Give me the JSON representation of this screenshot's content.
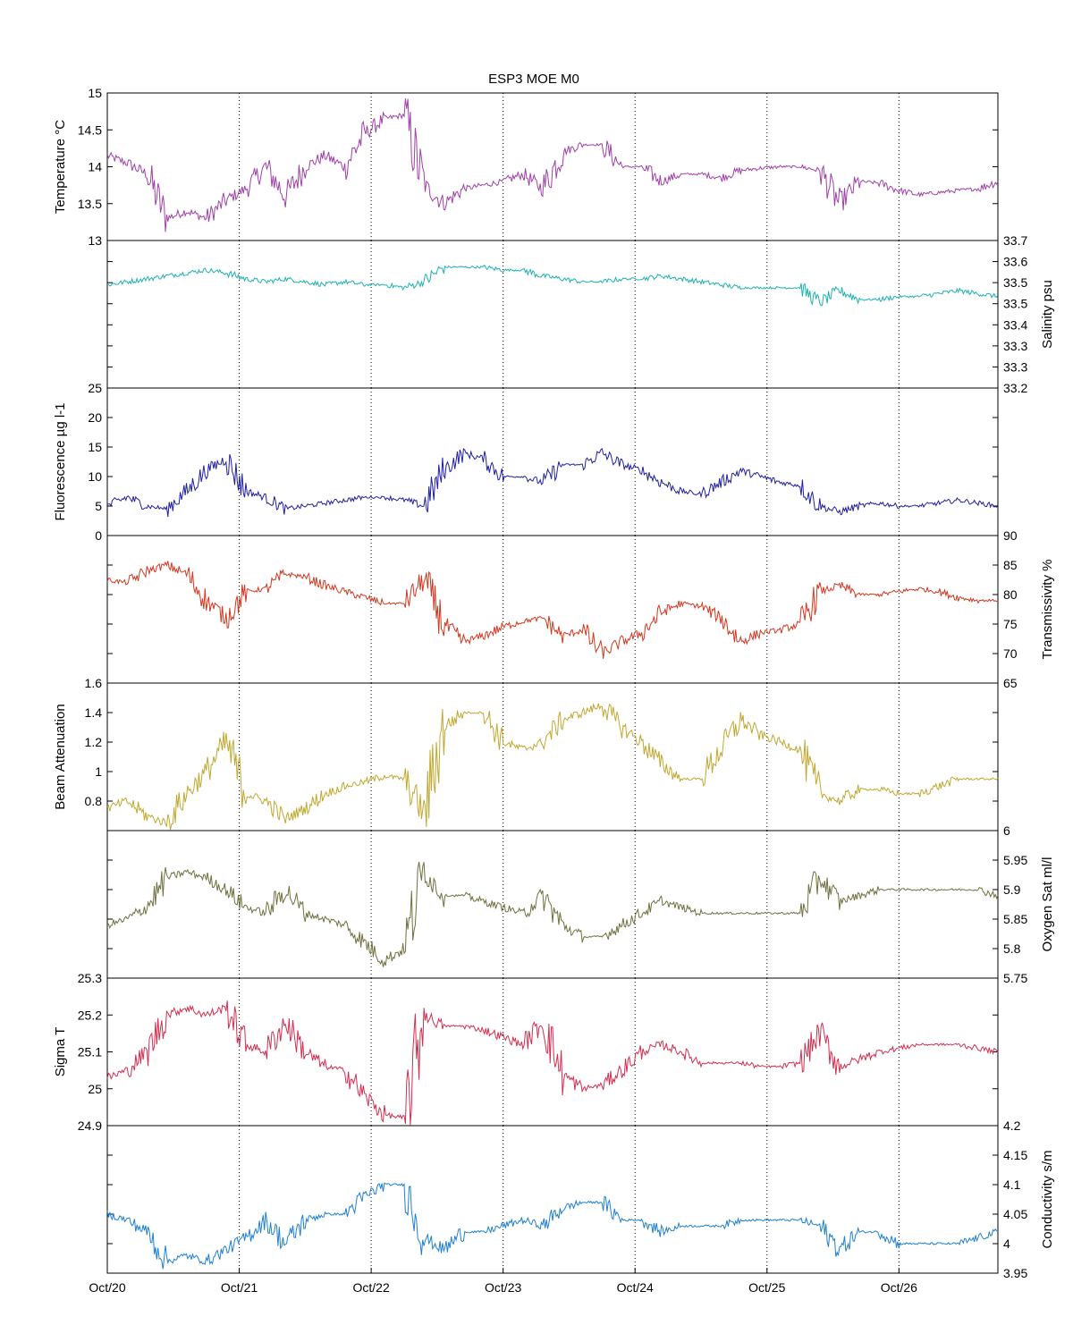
{
  "title": "ESP3 MOE   M0",
  "x_axis": {
    "start": "Oct/20",
    "end": "Oct/26 18:00",
    "tick_labels": [
      "Oct/20",
      "Oct/21",
      "Oct/22",
      "Oct/23",
      "Oct/24",
      "Oct/25",
      "Oct/26"
    ],
    "grid": "dotted vertical at each day"
  },
  "chart_data": [
    {
      "type": "line",
      "ylabel": "Temperature °C",
      "yaxis_side": "left",
      "ylim": [
        13,
        15
      ],
      "ytick_labels": [
        "13",
        "13.5",
        "14",
        "14.5",
        "15"
      ],
      "color": "#a040a8",
      "series": [
        {
          "x_days": [
            0,
            0.15,
            0.3,
            0.45,
            0.6,
            0.75,
            0.9,
            1.05,
            1.2,
            1.35,
            1.5,
            1.65,
            1.8,
            1.95,
            2.1,
            2.25,
            2.4,
            2.55,
            2.7,
            2.85,
            3.0,
            3.15,
            3.3,
            3.45,
            3.6,
            3.75,
            3.9,
            4.05,
            4.2,
            4.35,
            4.5,
            4.65,
            4.8,
            4.95,
            5.1,
            5.25,
            5.4,
            5.55,
            5.7,
            5.85,
            6.0,
            6.15,
            6.3,
            6.45,
            6.6,
            6.75
          ],
          "values": [
            14.15,
            14.05,
            13.9,
            13.3,
            13.4,
            13.3,
            13.55,
            13.7,
            14.0,
            13.6,
            14.0,
            14.15,
            14.0,
            14.45,
            14.65,
            14.7,
            13.75,
            13.5,
            13.7,
            13.75,
            13.8,
            13.9,
            13.7,
            14.2,
            14.3,
            14.3,
            14.0,
            14.0,
            13.8,
            13.9,
            13.9,
            13.85,
            13.95,
            13.98,
            14.0,
            14.0,
            13.95,
            13.5,
            13.8,
            13.78,
            13.68,
            13.62,
            13.65,
            13.68,
            13.7,
            13.8
          ]
        }
      ]
    },
    {
      "type": "line",
      "ylabel": "Salinity psu",
      "yaxis_side": "right",
      "ylim": [
        33.2,
        33.7
      ],
      "ytick_labels": [
        "33.2",
        "33.3",
        "33.3",
        "33.4",
        "33.5",
        "33.5",
        "33.6",
        "33.7"
      ],
      "color": "#20b0b0",
      "series": [
        {
          "x_days": [
            0,
            0.15,
            0.3,
            0.45,
            0.6,
            0.75,
            0.9,
            1.05,
            1.2,
            1.35,
            1.5,
            1.65,
            1.8,
            1.95,
            2.1,
            2.25,
            2.4,
            2.55,
            2.7,
            2.85,
            3.0,
            3.15,
            3.3,
            3.45,
            3.6,
            3.75,
            3.9,
            4.05,
            4.2,
            4.35,
            4.5,
            4.65,
            4.8,
            4.95,
            5.1,
            5.25,
            5.4,
            5.55,
            5.7,
            5.85,
            6.0,
            6.15,
            6.3,
            6.45,
            6.6,
            6.75
          ],
          "values": [
            33.55,
            33.56,
            33.57,
            33.58,
            33.59,
            33.6,
            33.59,
            33.57,
            33.56,
            33.57,
            33.56,
            33.55,
            33.56,
            33.55,
            33.55,
            33.54,
            33.56,
            33.61,
            33.61,
            33.61,
            33.6,
            33.6,
            33.58,
            33.57,
            33.56,
            33.56,
            33.57,
            33.57,
            33.58,
            33.57,
            33.56,
            33.55,
            33.54,
            33.54,
            33.54,
            33.54,
            33.49,
            33.53,
            33.5,
            33.5,
            33.51,
            33.51,
            33.52,
            33.53,
            33.52,
            33.51
          ]
        }
      ]
    },
    {
      "type": "line",
      "ylabel": "Fluorescence µg l-1",
      "yaxis_side": "left",
      "ylim": [
        0,
        25
      ],
      "ytick_labels": [
        "0",
        "5",
        "10",
        "15",
        "20",
        "25"
      ],
      "color": "#2020a0",
      "series": [
        {
          "x_days": [
            0,
            0.15,
            0.3,
            0.45,
            0.6,
            0.75,
            0.9,
            1.05,
            1.2,
            1.35,
            1.5,
            1.65,
            1.8,
            1.95,
            2.1,
            2.25,
            2.4,
            2.55,
            2.7,
            2.85,
            3.0,
            3.15,
            3.3,
            3.45,
            3.6,
            3.75,
            3.9,
            4.05,
            4.2,
            4.35,
            4.5,
            4.65,
            4.8,
            4.95,
            5.1,
            5.25,
            5.4,
            5.55,
            5.7,
            5.85,
            6.0,
            6.15,
            6.3,
            6.45,
            6.6,
            6.75
          ],
          "values": [
            5.0,
            6.5,
            5.0,
            4.5,
            7.5,
            11.0,
            13.0,
            7.5,
            6.5,
            4.5,
            5.0,
            5.5,
            6.0,
            6.5,
            6.5,
            6.0,
            5.0,
            11.0,
            14.0,
            13.0,
            10.0,
            10.0,
            9.0,
            12.0,
            12.0,
            14.0,
            12.0,
            11.0,
            9.0,
            7.5,
            7.0,
            9.0,
            11.0,
            10.0,
            9.0,
            8.5,
            5.0,
            4.0,
            5.0,
            5.5,
            5.0,
            5.0,
            5.5,
            6.0,
            5.5,
            5.0
          ]
        }
      ]
    },
    {
      "type": "line",
      "ylabel": "Transmissivity %",
      "yaxis_side": "right",
      "ylim": [
        65,
        90
      ],
      "ytick_labels": [
        "65",
        "70",
        "75",
        "80",
        "85",
        "90"
      ],
      "color": "#d03820",
      "series": [
        {
          "x_days": [
            0,
            0.15,
            0.3,
            0.45,
            0.6,
            0.75,
            0.9,
            1.05,
            1.2,
            1.35,
            1.5,
            1.65,
            1.8,
            1.95,
            2.1,
            2.25,
            2.4,
            2.55,
            2.7,
            2.85,
            3.0,
            3.15,
            3.3,
            3.45,
            3.6,
            3.75,
            3.9,
            4.05,
            4.2,
            4.35,
            4.5,
            4.65,
            4.8,
            4.95,
            5.1,
            5.25,
            5.4,
            5.55,
            5.7,
            5.85,
            6.0,
            6.15,
            6.3,
            6.45,
            6.6,
            6.75
          ],
          "values": [
            82.5,
            82.0,
            84.0,
            85.0,
            83.5,
            79.0,
            76.0,
            80.5,
            81.0,
            83.5,
            83.0,
            81.5,
            80.5,
            79.5,
            78.5,
            78.5,
            82.5,
            75.0,
            72.0,
            73.0,
            74.5,
            75.5,
            76.0,
            73.0,
            74.0,
            70.0,
            72.0,
            73.5,
            77.0,
            78.5,
            78.0,
            76.0,
            72.0,
            73.5,
            74.0,
            75.0,
            80.5,
            81.5,
            80.0,
            80.0,
            80.5,
            81.0,
            80.5,
            79.5,
            79.0,
            79.0
          ]
        }
      ]
    },
    {
      "type": "line",
      "ylabel": "Beam Attenuation",
      "yaxis_side": "left",
      "ylim": [
        0.6,
        1.6
      ],
      "ytick_labels": [
        "0.8",
        "1",
        "1.2",
        "1.4",
        "1.6"
      ],
      "color": "#c0a830",
      "series": [
        {
          "x_days": [
            0,
            0.15,
            0.3,
            0.45,
            0.6,
            0.75,
            0.9,
            1.05,
            1.2,
            1.35,
            1.5,
            1.65,
            1.8,
            1.95,
            2.1,
            2.25,
            2.4,
            2.55,
            2.7,
            2.85,
            3.0,
            3.15,
            3.3,
            3.45,
            3.6,
            3.75,
            3.9,
            4.05,
            4.2,
            4.35,
            4.5,
            4.65,
            4.8,
            4.95,
            5.1,
            5.25,
            5.4,
            5.55,
            5.7,
            5.85,
            6.0,
            6.15,
            6.3,
            6.45,
            6.6,
            6.75
          ],
          "values": [
            0.75,
            0.8,
            0.7,
            0.65,
            0.85,
            1.0,
            1.2,
            0.85,
            0.8,
            0.68,
            0.75,
            0.85,
            0.9,
            0.93,
            0.97,
            0.95,
            0.72,
            1.3,
            1.4,
            1.4,
            1.2,
            1.15,
            1.2,
            1.35,
            1.4,
            1.45,
            1.3,
            1.2,
            1.05,
            0.95,
            0.95,
            1.15,
            1.35,
            1.25,
            1.2,
            1.15,
            0.85,
            0.8,
            0.88,
            0.88,
            0.85,
            0.85,
            0.9,
            0.95,
            0.95,
            0.95
          ]
        }
      ]
    },
    {
      "type": "line",
      "ylabel": "Oxygen Sat ml/l",
      "yaxis_side": "right",
      "ylim": [
        5.75,
        6.0
      ],
      "ytick_labels": [
        "5.75",
        "5.8",
        "5.85",
        "5.9",
        "5.95",
        "6"
      ],
      "color": "#707040",
      "series": [
        {
          "x_days": [
            0,
            0.15,
            0.3,
            0.45,
            0.6,
            0.75,
            0.9,
            1.05,
            1.2,
            1.35,
            1.5,
            1.65,
            1.8,
            1.95,
            2.1,
            2.25,
            2.4,
            2.55,
            2.7,
            2.85,
            3.0,
            3.15,
            3.3,
            3.45,
            3.6,
            3.75,
            3.9,
            4.05,
            4.2,
            4.35,
            4.5,
            4.65,
            4.8,
            4.95,
            5.1,
            5.25,
            5.4,
            5.55,
            5.7,
            5.85,
            6.0,
            6.15,
            6.3,
            6.45,
            6.6,
            6.75
          ],
          "values": [
            5.84,
            5.85,
            5.87,
            5.92,
            5.93,
            5.92,
            5.9,
            5.87,
            5.86,
            5.9,
            5.86,
            5.85,
            5.84,
            5.81,
            5.78,
            5.8,
            5.93,
            5.89,
            5.89,
            5.88,
            5.87,
            5.86,
            5.89,
            5.84,
            5.82,
            5.82,
            5.84,
            5.86,
            5.88,
            5.87,
            5.86,
            5.86,
            5.86,
            5.86,
            5.86,
            5.86,
            5.92,
            5.88,
            5.89,
            5.9,
            5.9,
            5.9,
            5.9,
            5.9,
            5.9,
            5.89
          ]
        }
      ]
    },
    {
      "type": "line",
      "ylabel": "Sigma T",
      "yaxis_side": "left",
      "ylim": [
        24.9,
        25.3
      ],
      "ytick_labels": [
        "24.9",
        "25",
        "25.1",
        "25.2",
        "25.3"
      ],
      "color": "#d03050",
      "series": [
        {
          "x_days": [
            0,
            0.15,
            0.3,
            0.45,
            0.6,
            0.75,
            0.9,
            1.05,
            1.2,
            1.35,
            1.5,
            1.65,
            1.8,
            1.95,
            2.1,
            2.25,
            2.4,
            2.55,
            2.7,
            2.85,
            3.0,
            3.15,
            3.3,
            3.45,
            3.6,
            3.75,
            3.9,
            4.05,
            4.2,
            4.35,
            4.5,
            4.65,
            4.8,
            4.95,
            5.1,
            5.25,
            5.4,
            5.55,
            5.7,
            5.85,
            6.0,
            6.15,
            6.3,
            6.45,
            6.6,
            6.75
          ],
          "values": [
            25.03,
            25.05,
            25.1,
            25.2,
            25.22,
            25.2,
            25.22,
            25.12,
            25.1,
            25.18,
            25.1,
            25.06,
            25.05,
            24.98,
            24.93,
            24.92,
            25.2,
            25.17,
            25.17,
            25.16,
            25.14,
            25.12,
            25.18,
            25.04,
            25.0,
            25.01,
            25.05,
            25.1,
            25.12,
            25.1,
            25.07,
            25.07,
            25.07,
            25.06,
            25.06,
            25.07,
            25.15,
            25.06,
            25.08,
            25.1,
            25.11,
            25.12,
            25.12,
            25.12,
            25.11,
            25.1
          ]
        }
      ]
    },
    {
      "type": "line",
      "ylabel": "Conductivity s/m",
      "yaxis_side": "right",
      "ylim": [
        3.95,
        4.2
      ],
      "ytick_labels": [
        "3.95",
        "4",
        "4.05",
        "4.1",
        "4.15",
        "4.2"
      ],
      "color": "#2080d0",
      "series": [
        {
          "x_days": [
            0,
            0.15,
            0.3,
            0.45,
            0.6,
            0.75,
            0.9,
            1.05,
            1.2,
            1.35,
            1.5,
            1.65,
            1.8,
            1.95,
            2.1,
            2.25,
            2.4,
            2.55,
            2.7,
            2.85,
            3.0,
            3.15,
            3.3,
            3.45,
            3.6,
            3.75,
            3.9,
            4.05,
            4.2,
            4.35,
            4.5,
            4.65,
            4.8,
            4.95,
            5.1,
            5.25,
            5.4,
            5.55,
            5.7,
            5.85,
            6.0,
            6.15,
            6.3,
            6.45,
            6.6,
            6.75
          ],
          "values": [
            4.05,
            4.04,
            4.02,
            3.97,
            3.98,
            3.97,
            3.99,
            4.01,
            4.04,
            4.0,
            4.04,
            4.05,
            4.05,
            4.08,
            4.1,
            4.1,
            4.01,
            3.99,
            4.02,
            4.02,
            4.03,
            4.04,
            4.03,
            4.06,
            4.07,
            4.07,
            4.04,
            4.04,
            4.02,
            4.03,
            4.03,
            4.03,
            4.04,
            4.04,
            4.04,
            4.04,
            4.03,
            3.99,
            4.02,
            4.02,
            4.0,
            4.0,
            4.0,
            4.0,
            4.01,
            4.02
          ]
        }
      ]
    }
  ]
}
